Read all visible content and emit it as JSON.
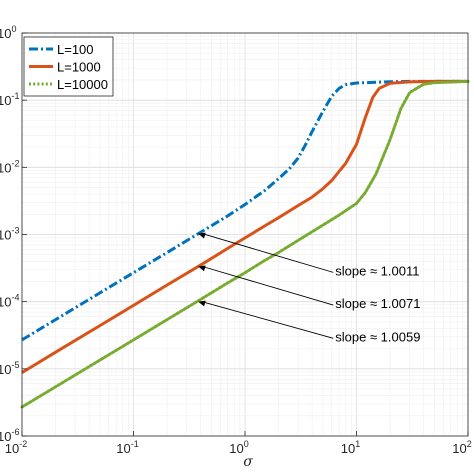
{
  "chart_data": {
    "type": "line",
    "xlabel": "σ",
    "ylabel": "",
    "xscale": "log",
    "yscale": "log",
    "xlim": [
      0.01,
      100
    ],
    "ylim": [
      1e-06,
      1
    ],
    "grid": true,
    "minor_grid": true,
    "legend_position": "top-left",
    "x_tick_labels": [
      {
        "base": "10",
        "exp": "-2"
      },
      {
        "base": "10",
        "exp": "-1"
      },
      {
        "base": "10",
        "exp": "0"
      },
      {
        "base": "10",
        "exp": "1"
      },
      {
        "base": "10",
        "exp": "2"
      }
    ],
    "y_tick_labels": [
      {
        "base": "10",
        "exp": "-6"
      },
      {
        "base": "10",
        "exp": "-5"
      },
      {
        "base": "10",
        "exp": "-4"
      },
      {
        "base": "10",
        "exp": "-3"
      },
      {
        "base": "10",
        "exp": "-2"
      },
      {
        "base": "10",
        "exp": "-1"
      },
      {
        "base": "10",
        "exp": "0"
      }
    ],
    "series": [
      {
        "name": "L=100",
        "color": "#0072BD",
        "line_style": "dash-dot",
        "x": [
          0.01,
          0.02,
          0.05,
          0.1,
          0.2,
          0.4,
          0.7,
          1.0,
          1.5,
          2.0,
          2.5,
          3.0,
          3.5,
          4.0,
          5.0,
          6.0,
          7.0,
          8.0,
          10.0,
          15.0,
          20.0,
          30.0,
          50.0,
          100.0
        ],
        "y": [
          2.7e-05,
          5.4e-05,
          0.000135,
          0.00027,
          0.00054,
          0.00108,
          0.00189,
          0.0028,
          0.0045,
          0.0068,
          0.0095,
          0.0138,
          0.022,
          0.034,
          0.068,
          0.115,
          0.15,
          0.17,
          0.18,
          0.185,
          0.188,
          0.19,
          0.19,
          0.19
        ]
      },
      {
        "name": "L=1000",
        "color": "#D95319",
        "line_style": "solid",
        "x": [
          0.01,
          0.02,
          0.05,
          0.1,
          0.2,
          0.4,
          0.7,
          1.0,
          1.5,
          2.0,
          3.0,
          4.0,
          5.0,
          6.0,
          8.0,
          10.0,
          12.0,
          14.0,
          16.0,
          20.0,
          30.0,
          50.0,
          100.0
        ],
        "y": [
          8.8e-06,
          1.77e-05,
          4.4e-05,
          8.8e-05,
          0.000177,
          0.00035,
          0.00062,
          0.00089,
          0.00134,
          0.00178,
          0.0027,
          0.0036,
          0.0048,
          0.0064,
          0.0115,
          0.022,
          0.055,
          0.11,
          0.15,
          0.178,
          0.187,
          0.19,
          0.19
        ]
      },
      {
        "name": "L=10000",
        "color": "#77AC30",
        "line_style": "dotted",
        "x": [
          0.01,
          0.02,
          0.05,
          0.1,
          0.2,
          0.4,
          0.7,
          1.0,
          1.5,
          2.0,
          3.0,
          5.0,
          7.0,
          10.0,
          12.0,
          15.0,
          20.0,
          25.0,
          30.0,
          40.0,
          50.0,
          100.0
        ],
        "y": [
          2.7e-06,
          5.4e-06,
          1.35e-05,
          2.7e-05,
          5.4e-05,
          0.000108,
          0.00019,
          0.00027,
          0.00041,
          0.00054,
          0.00082,
          0.00138,
          0.00195,
          0.0029,
          0.0042,
          0.008,
          0.026,
          0.075,
          0.13,
          0.172,
          0.182,
          0.19
        ]
      }
    ],
    "annotations": [
      {
        "text": "slope ≈ 1.0011",
        "arrow_to": {
          "x": 0.38,
          "y": 0.00103
        },
        "anchor": {
          "x": 16,
          "y": 0.00023
        }
      },
      {
        "text": "slope ≈ 1.0071",
        "arrow_to": {
          "x": 0.38,
          "y": 0.000335
        },
        "anchor": {
          "x": 16,
          "y": 7.5e-05
        }
      },
      {
        "text": "slope ≈ 1.0059",
        "arrow_to": {
          "x": 0.38,
          "y": 0.0001
        },
        "anchor": {
          "x": 16,
          "y": 2.4e-05
        }
      }
    ]
  }
}
